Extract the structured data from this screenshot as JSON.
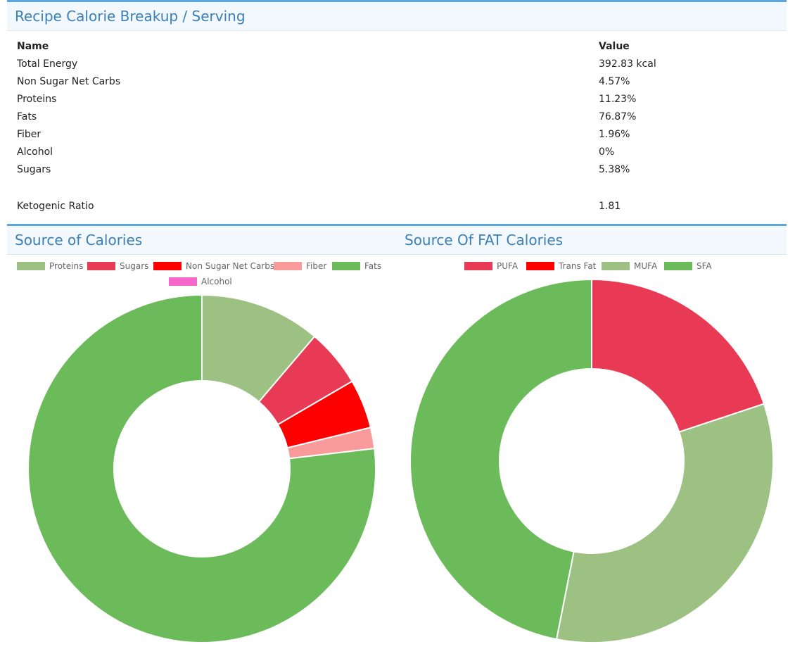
{
  "breakup": {
    "title": "Recipe Calorie Breakup / Serving",
    "header_name": "Name",
    "header_value": "Value",
    "rows": [
      {
        "name": "Total Energy",
        "value": "392.83 kcal"
      },
      {
        "name": "Non Sugar Net Carbs",
        "value": "4.57%"
      },
      {
        "name": "Proteins",
        "value": "11.23%"
      },
      {
        "name": "Fats",
        "value": "76.87%"
      },
      {
        "name": "Fiber",
        "value": "1.96%"
      },
      {
        "name": "Alcohol",
        "value": "0%"
      },
      {
        "name": "Sugars",
        "value": "5.38%"
      }
    ],
    "keto": {
      "name": "Ketogenic Ratio",
      "value": "1.81"
    }
  },
  "chart_data": [
    {
      "type": "pie",
      "title": "Source of Calories",
      "categories": [
        "Proteins",
        "Sugars",
        "Non Sugar Net Carbs",
        "Fiber",
        "Fats",
        "Alcohol"
      ],
      "values": [
        11.23,
        5.38,
        4.57,
        1.96,
        76.87,
        0
      ],
      "colors": [
        "#9dc183",
        "#e83a54",
        "#ff0000",
        "#f99b9b",
        "#6cbb5a",
        "#f767c9"
      ],
      "legend": "top",
      "donut": true
    },
    {
      "type": "pie",
      "title": "Source Of FAT Calories",
      "categories": [
        "PUFA",
        "Trans Fat",
        "MUFA",
        "SFA"
      ],
      "values": [
        19.9,
        0,
        33.2,
        46.9
      ],
      "colors": [
        "#e83a54",
        "#ff0000",
        "#9dc183",
        "#6cbb5a"
      ],
      "legend": "top",
      "donut": true
    }
  ]
}
